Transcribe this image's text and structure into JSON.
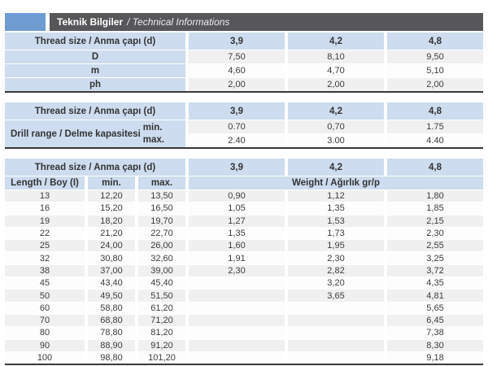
{
  "title": {
    "turkish": "Teknik Bilgiler",
    "english": "/ Technical Informations"
  },
  "colors": {
    "accent_blue": "#6f9bd3",
    "title_bar_gray": "#57575a",
    "header_blue": "#cddcee",
    "row_alt_gray": "#f0f0f1",
    "border_dark": "#39393b"
  },
  "shared": {
    "thread_size_label": "Thread size / Anma çapı (d)",
    "sizes": [
      "3,9",
      "4,2",
      "4,8"
    ]
  },
  "table1": {
    "rows": [
      {
        "label": "D",
        "values": [
          "7,50",
          "8,10",
          "9,50"
        ]
      },
      {
        "label": "m",
        "values": [
          "4,60",
          "4,70",
          "5,10"
        ]
      },
      {
        "label": "ph",
        "values": [
          "2,00",
          "2,00",
          "2,00"
        ]
      }
    ]
  },
  "table2": {
    "label": "Drill range / Delme kapasitesi",
    "min_label": "min.",
    "max_label": "max.",
    "min_values": [
      "0.70",
      "0,70",
      "1.75"
    ],
    "max_values": [
      "2.40",
      "3.00",
      "4.40"
    ]
  },
  "table3": {
    "length_label": "Length / Boy (I)",
    "min_label": "min.",
    "max_label": "max.",
    "weight_label": "Weight / Ağırlık gr/p",
    "rows": [
      {
        "length": "13",
        "min": "12,20",
        "max": "13,50",
        "weights": [
          "0,90",
          "1,12",
          "1,80"
        ]
      },
      {
        "length": "16",
        "min": "15,20",
        "max": "16,50",
        "weights": [
          "1,05",
          "1,35",
          "1,85"
        ]
      },
      {
        "length": "19",
        "min": "18,20",
        "max": "19,70",
        "weights": [
          "1,27",
          "1,53",
          "2,15"
        ]
      },
      {
        "length": "22",
        "min": "21,20",
        "max": "22,70",
        "weights": [
          "1,35",
          "1,73",
          "2,30"
        ]
      },
      {
        "length": "25",
        "min": "24,00",
        "max": "26,00",
        "weights": [
          "1,60",
          "1,95",
          "2,55"
        ]
      },
      {
        "length": "32",
        "min": "30,80",
        "max": "32,60",
        "weights": [
          "1,91",
          "2,30",
          "3,25"
        ]
      },
      {
        "length": "38",
        "min": "37,00",
        "max": "39,00",
        "weights": [
          "2,30",
          "2,82",
          "3,72"
        ]
      },
      {
        "length": "45",
        "min": "43,40",
        "max": "45,40",
        "weights": [
          "",
          "3,20",
          "4,35"
        ]
      },
      {
        "length": "50",
        "min": "49,50",
        "max": "51,50",
        "weights": [
          "",
          "3,65",
          "4,81"
        ]
      },
      {
        "length": "60",
        "min": "58,80",
        "max": "61,20",
        "weights": [
          "",
          "",
          "5,65"
        ]
      },
      {
        "length": "70",
        "min": "68,80",
        "max": "71,20",
        "weights": [
          "",
          "",
          "6,45"
        ]
      },
      {
        "length": "80",
        "min": "78,80",
        "max": "81,20",
        "weights": [
          "",
          "",
          "7,38"
        ]
      },
      {
        "length": "90",
        "min": "88,90",
        "max": "91,20",
        "weights": [
          "",
          "",
          "8,30"
        ]
      },
      {
        "length": "100",
        "min": "98,80",
        "max": "101,20",
        "weights": [
          "",
          "",
          "9,18"
        ]
      }
    ]
  }
}
